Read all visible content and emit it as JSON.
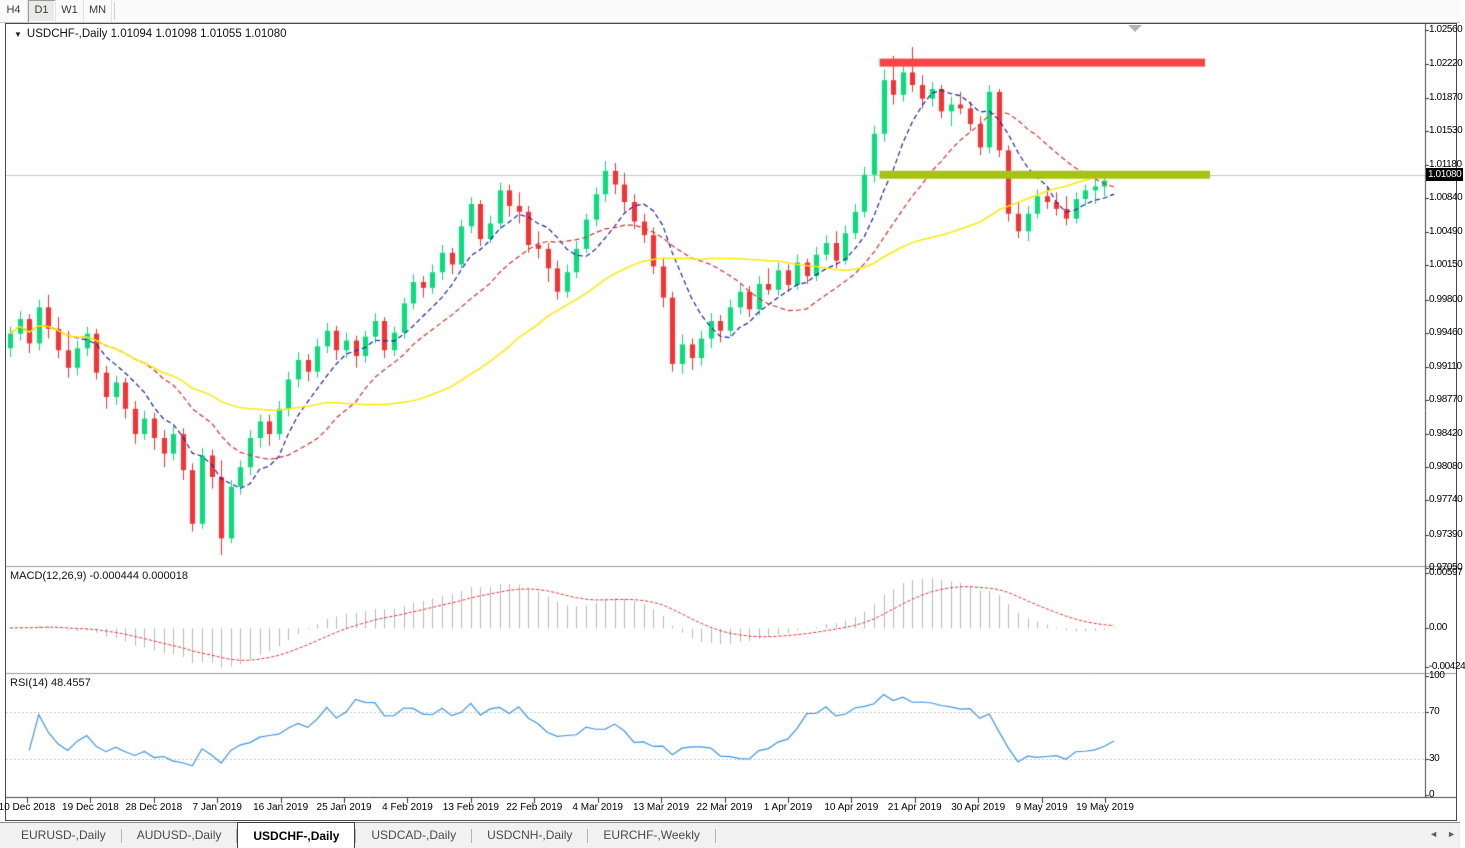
{
  "toolbar": {
    "timeframes": [
      {
        "label": "H4",
        "active": false
      },
      {
        "label": "D1",
        "active": true
      },
      {
        "label": "W1",
        "active": false
      },
      {
        "label": "MN",
        "active": false
      }
    ]
  },
  "chart": {
    "collapse_arrow": "▼",
    "title_line": "USDCHF-,Daily  1.01094 1.01098 1.01055 1.01080"
  },
  "price_axis": {
    "labels": [
      "1.02560",
      "1.02220",
      "1.01870",
      "1.01530",
      "1.01180",
      "1.00840",
      "1.00490",
      "1.00150",
      "0.99800",
      "0.99460",
      "0.99110",
      "0.98770",
      "0.98420",
      "0.98080",
      "0.97740",
      "0.97390",
      "0.97050"
    ],
    "current_price": "1.01080"
  },
  "macd_panel": {
    "label": "MACD(12,26,9) -0.000444 0.000018",
    "axis_labels": [
      "0.00597",
      "0.00",
      "-0.00424"
    ]
  },
  "rsi_panel": {
    "label": "RSI(14) 48.4557",
    "axis_labels": [
      "100",
      "70",
      "30",
      "0"
    ]
  },
  "time_axis": {
    "labels": [
      "10 Dec 2018",
      "19 Dec 2018",
      "28 Dec 2018",
      "7 Jan 2019",
      "16 Jan 2019",
      "25 Jan 2019",
      "4 Feb 2019",
      "13 Feb 2019",
      "22 Feb 2019",
      "4 Mar 2019",
      "13 Mar 2019",
      "22 Mar 2019",
      "1 Apr 2019",
      "10 Apr 2019",
      "21 Apr 2019",
      "30 Apr 2019",
      "9 May 2019",
      "19 May 2019"
    ]
  },
  "tabs": {
    "items": [
      {
        "label": "EURUSD-,Daily",
        "active": false
      },
      {
        "label": "AUDUSD-,Daily",
        "active": false
      },
      {
        "label": "USDCHF-,Daily",
        "active": true
      },
      {
        "label": "USDCAD-,Daily",
        "active": false
      },
      {
        "label": "USDCNH-,Daily",
        "active": false
      },
      {
        "label": "EURCHF-,Weekly",
        "active": false
      }
    ],
    "scroll_left": "◄",
    "scroll_right": "►"
  },
  "colors": {
    "bull": "#00e17a",
    "bear": "#ff2f2f",
    "ma_fast": "#2121aa",
    "ma_mid": "#dc3030",
    "ma_slow": "#ffeb00",
    "macd_hist": "#b9b9b9",
    "macd_signal": "#ff2a2a",
    "rsi": "#3d97e6",
    "rsi_levels": "#c9c9c9",
    "resistance": "#f94444",
    "support": "#a6c30f",
    "current_price_line": "#c8c8c8",
    "frame": "#444444",
    "separator": "#9b9b9b",
    "badge_bg": "#000000",
    "badge_text": "#ffffff"
  },
  "chart_data": {
    "type": "candlestick",
    "title": "USDCHF-,Daily",
    "symbol": "USDCHF-",
    "timeframe": "Daily",
    "last_quote": {
      "open": 1.01094,
      "high": 1.01098,
      "low": 1.01055,
      "close": 1.0108
    },
    "ylim": [
      0.9705,
      1.0256
    ],
    "x_axis_labels": [
      "10 Dec 2018",
      "19 Dec 2018",
      "28 Dec 2018",
      "7 Jan 2019",
      "16 Jan 2019",
      "25 Jan 2019",
      "4 Feb 2019",
      "13 Feb 2019",
      "22 Feb 2019",
      "4 Mar 2019",
      "13 Mar 2019",
      "22 Mar 2019",
      "1 Apr 2019",
      "10 Apr 2019",
      "21 Apr 2019",
      "30 Apr 2019",
      "9 May 2019",
      "19 May 2019"
    ],
    "candles": [
      [
        0.993,
        0.9952,
        0.9921,
        0.9945
      ],
      [
        0.9945,
        0.9968,
        0.9938,
        0.996
      ],
      [
        0.996,
        0.9965,
        0.9925,
        0.9935
      ],
      [
        0.9935,
        0.998,
        0.9928,
        0.9972
      ],
      [
        0.9972,
        0.9985,
        0.994,
        0.995
      ],
      [
        0.995,
        0.9962,
        0.992,
        0.9928
      ],
      [
        0.9928,
        0.9948,
        0.99,
        0.991
      ],
      [
        0.991,
        0.9938,
        0.9902,
        0.993
      ],
      [
        0.993,
        0.9952,
        0.9922,
        0.9945
      ],
      [
        0.9945,
        0.995,
        0.9898,
        0.9905
      ],
      [
        0.9905,
        0.9912,
        0.9868,
        0.988
      ],
      [
        0.988,
        0.9902,
        0.9872,
        0.9895
      ],
      [
        0.9895,
        0.99,
        0.9858,
        0.9868
      ],
      [
        0.9868,
        0.9876,
        0.9832,
        0.9842
      ],
      [
        0.9842,
        0.9866,
        0.9836,
        0.9858
      ],
      [
        0.9858,
        0.9864,
        0.9826,
        0.9838
      ],
      [
        0.9838,
        0.9846,
        0.9808,
        0.9822
      ],
      [
        0.9822,
        0.985,
        0.9815,
        0.9842
      ],
      [
        0.9842,
        0.9848,
        0.9795,
        0.9805
      ],
      [
        0.9805,
        0.9812,
        0.9742,
        0.975
      ],
      [
        0.975,
        0.9828,
        0.9745,
        0.982
      ],
      [
        0.982,
        0.9826,
        0.9786,
        0.9798
      ],
      [
        0.9798,
        0.9815,
        0.9718,
        0.9735
      ],
      [
        0.9735,
        0.9795,
        0.973,
        0.9788
      ],
      [
        0.9788,
        0.9815,
        0.978,
        0.9808
      ],
      [
        0.9808,
        0.9846,
        0.98,
        0.9838
      ],
      [
        0.9838,
        0.9862,
        0.9828,
        0.9855
      ],
      [
        0.9855,
        0.9862,
        0.983,
        0.9842
      ],
      [
        0.9842,
        0.9876,
        0.9836,
        0.9868
      ],
      [
        0.9868,
        0.9906,
        0.986,
        0.9898
      ],
      [
        0.9898,
        0.9926,
        0.989,
        0.9918
      ],
      [
        0.9918,
        0.9924,
        0.9896,
        0.9906
      ],
      [
        0.9906,
        0.994,
        0.99,
        0.9932
      ],
      [
        0.9932,
        0.9956,
        0.9925,
        0.9948
      ],
      [
        0.9948,
        0.9953,
        0.9918,
        0.9928
      ],
      [
        0.9928,
        0.9946,
        0.992,
        0.9938
      ],
      [
        0.9938,
        0.9943,
        0.991,
        0.9922
      ],
      [
        0.9922,
        0.9948,
        0.9915,
        0.9942
      ],
      [
        0.9942,
        0.9966,
        0.9935,
        0.9958
      ],
      [
        0.9958,
        0.9962,
        0.992,
        0.9928
      ],
      [
        0.9928,
        0.9952,
        0.9922,
        0.9946
      ],
      [
        0.9946,
        0.9982,
        0.994,
        0.9976
      ],
      [
        0.9976,
        1.0006,
        0.997,
        0.9998
      ],
      [
        0.9998,
        1.0004,
        0.9982,
        0.9992
      ],
      [
        0.9992,
        1.0016,
        0.9986,
        1.0008
      ],
      [
        1.0008,
        1.0036,
        1.0,
        1.0028
      ],
      [
        1.0028,
        1.0033,
        1.0006,
        1.0016
      ],
      [
        1.0016,
        1.0062,
        1.0012,
        1.0055
      ],
      [
        1.0055,
        1.0085,
        1.0048,
        1.0078
      ],
      [
        1.0078,
        1.0082,
        1.0035,
        1.0042
      ],
      [
        1.0042,
        1.0066,
        1.0038,
        1.0058
      ],
      [
        1.0058,
        1.01,
        1.0052,
        1.0092
      ],
      [
        1.0092,
        1.0098,
        1.0065,
        1.0076
      ],
      [
        1.0076,
        1.009,
        1.0058,
        1.007
      ],
      [
        1.007,
        1.0076,
        1.0028,
        1.0036
      ],
      [
        1.0036,
        1.005,
        1.0022,
        1.0032
      ],
      [
        1.0032,
        1.0038,
        0.9998,
        1.0012
      ],
      [
        1.0012,
        1.002,
        0.998,
        0.9988
      ],
      [
        0.9988,
        1.0016,
        0.9982,
        1.0008
      ],
      [
        1.0008,
        1.004,
        1.0002,
        1.0032
      ],
      [
        1.0032,
        1.0068,
        1.0028,
        1.0062
      ],
      [
        1.0062,
        1.0095,
        1.0055,
        1.0088
      ],
      [
        1.0088,
        1.0122,
        1.008,
        1.0112
      ],
      [
        1.0112,
        1.012,
        1.0088,
        1.0098
      ],
      [
        1.0098,
        1.011,
        1.007,
        1.008
      ],
      [
        1.008,
        1.0088,
        1.0052,
        1.006
      ],
      [
        1.006,
        1.0068,
        1.0038,
        1.0046
      ],
      [
        1.0046,
        1.0054,
        1.0006,
        1.0014
      ],
      [
        1.0014,
        1.0022,
        0.9972,
        0.9982
      ],
      [
        0.9982,
        0.9988,
        0.9906,
        0.9914
      ],
      [
        0.9914,
        0.9944,
        0.9904,
        0.9934
      ],
      [
        0.9934,
        0.994,
        0.9908,
        0.992
      ],
      [
        0.992,
        0.9948,
        0.9912,
        0.994
      ],
      [
        0.994,
        0.9966,
        0.993,
        0.9958
      ],
      [
        0.9958,
        0.9964,
        0.9936,
        0.9948
      ],
      [
        0.9948,
        0.998,
        0.9942,
        0.9972
      ],
      [
        0.9972,
        0.9996,
        0.9965,
        0.9988
      ],
      [
        0.9988,
        0.9994,
        0.9962,
        0.997
      ],
      [
        0.997,
        1.0004,
        0.9964,
        0.9996
      ],
      [
        0.9996,
        1.0012,
        0.9985,
        0.999
      ],
      [
        0.999,
        1.0018,
        0.9984,
        1.001
      ],
      [
        1.001,
        1.0016,
        0.9988,
        0.9995
      ],
      [
        0.9995,
        1.0026,
        0.999,
        1.0018
      ],
      [
        1.0018,
        1.0022,
        0.9996,
        1.0004
      ],
      [
        1.0004,
        1.0034,
        0.9999,
        1.0026
      ],
      [
        1.0026,
        1.0046,
        1.002,
        1.0038
      ],
      [
        1.0038,
        1.005,
        1.0012,
        1.002
      ],
      [
        1.002,
        1.0056,
        1.0016,
        1.0048
      ],
      [
        1.0048,
        1.0078,
        1.0042,
        1.007
      ],
      [
        1.007,
        1.0116,
        1.0064,
        1.0108
      ],
      [
        1.0108,
        1.0158,
        1.01,
        1.015
      ],
      [
        1.015,
        1.0216,
        1.0142,
        1.0205
      ],
      [
        1.0205,
        1.023,
        1.018,
        1.019
      ],
      [
        1.019,
        1.0223,
        1.0183,
        1.0213
      ],
      [
        1.0213,
        1.0239,
        1.0193,
        1.02
      ],
      [
        1.02,
        1.021,
        1.0176,
        1.0186
      ],
      [
        1.0186,
        1.0203,
        1.0178,
        1.0196
      ],
      [
        1.0196,
        1.02,
        1.0166,
        1.0173
      ],
      [
        1.0173,
        1.0188,
        1.0158,
        1.018
      ],
      [
        1.018,
        1.0193,
        1.017,
        1.0176
      ],
      [
        1.0176,
        1.0183,
        1.0153,
        1.016
      ],
      [
        1.016,
        1.0168,
        1.0128,
        1.0136
      ],
      [
        1.0136,
        1.02,
        1.013,
        1.0193
      ],
      [
        1.0193,
        1.0196,
        1.0126,
        1.0133
      ],
      [
        1.0133,
        1.0138,
        1.006,
        1.0068
      ],
      [
        1.0068,
        1.008,
        1.0043,
        1.005
      ],
      [
        1.005,
        1.0076,
        1.004,
        1.0068
      ],
      [
        1.0068,
        1.0093,
        1.0063,
        1.0086
      ],
      [
        1.0086,
        1.0096,
        1.0073,
        1.008
      ],
      [
        1.008,
        1.009,
        1.0066,
        1.0073
      ],
      [
        1.0073,
        1.0086,
        1.0056,
        1.0063
      ],
      [
        1.0063,
        1.009,
        1.0058,
        1.0083
      ],
      [
        1.0083,
        1.0098,
        1.0076,
        1.0092
      ],
      [
        1.0092,
        1.0103,
        1.0078,
        1.0096
      ],
      [
        1.0096,
        1.0108,
        1.0086,
        1.0102
      ],
      [
        1.01094,
        1.01098,
        1.01055,
        1.0108
      ]
    ],
    "overlays": [
      {
        "name": "ma-fast",
        "type": "sma",
        "period": 7,
        "color_key": "ma_fast",
        "dashed": true
      },
      {
        "name": "ma-mid",
        "type": "sma",
        "period": 15,
        "color_key": "ma_mid",
        "dashed": true
      },
      {
        "name": "ma-slow",
        "type": "sma",
        "period": 34,
        "color_key": "ma_slow",
        "dashed": false
      }
    ],
    "levels": [
      {
        "name": "resistance-band",
        "price": 1.0223,
        "thickness": 8,
        "from_index": 91,
        "to_x": 1199,
        "color_key": "resistance"
      },
      {
        "name": "support-band",
        "price": 1.0108,
        "thickness": 8,
        "from_index": 91,
        "to_x": 1204,
        "color_key": "support"
      }
    ],
    "current_price": 1.0108,
    "sub_charts": [
      {
        "type": "macd",
        "params": [
          12,
          26,
          9
        ],
        "derived_from": "candles",
        "axis_range": [
          -0.00424,
          0.00597
        ],
        "last_values": [
          -0.000444,
          1.8e-05
        ]
      },
      {
        "type": "rsi",
        "period": 14,
        "derived_from": "candles",
        "levels": [
          30,
          70
        ],
        "axis_range": [
          0,
          100
        ],
        "last_value": 48.4557
      }
    ]
  }
}
